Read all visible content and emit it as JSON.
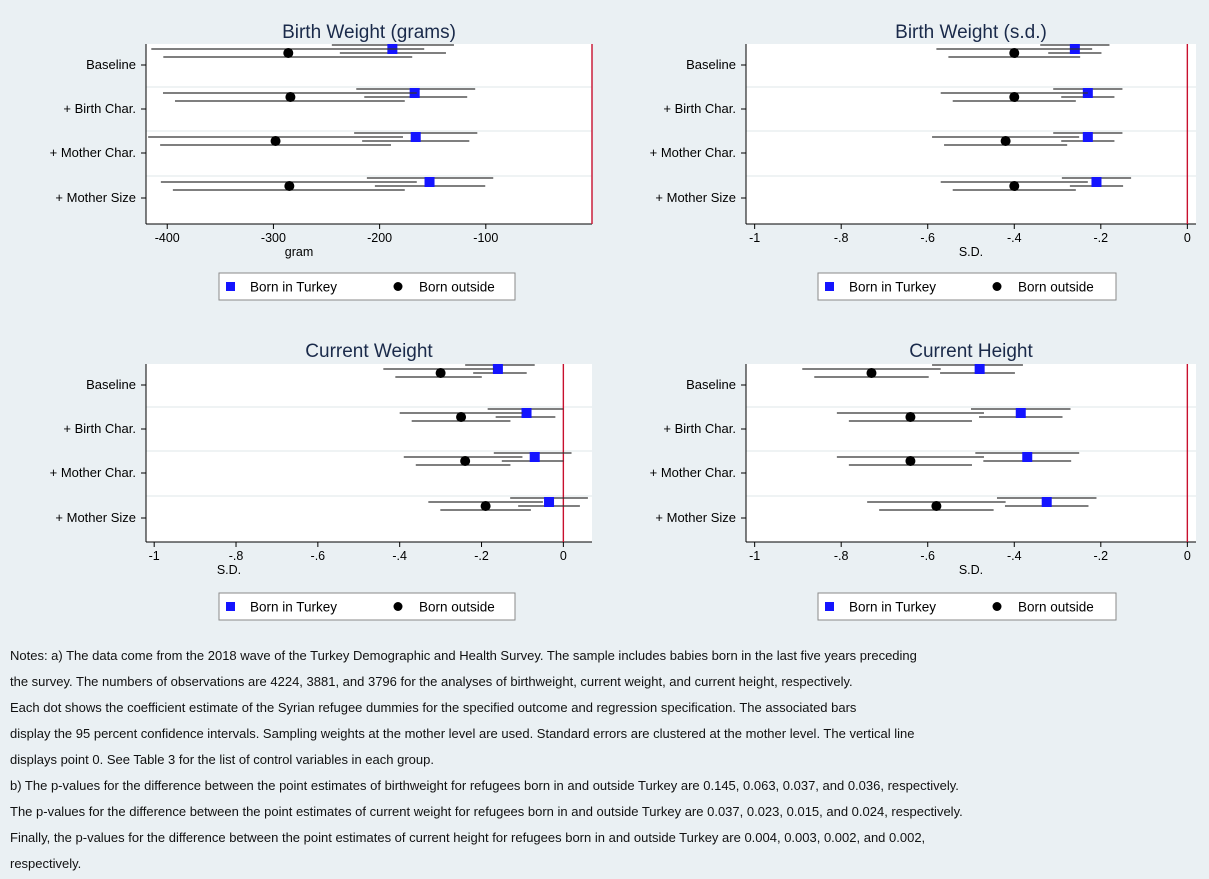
{
  "chart_data": [
    {
      "type": "scatter",
      "title": "Birth Weight (grams)",
      "xlabel": "gram",
      "xlim": [
        -420,
        0
      ],
      "xticks": [
        -400,
        -300,
        -200,
        -100
      ],
      "xtick_labels": [
        "-400",
        "-300",
        "-200",
        "-100"
      ],
      "zero_line": 0,
      "categories": [
        "Baseline",
        "+ Birth Char.",
        "+ Mother Char.",
        "+ Mother Size"
      ],
      "series": [
        {
          "name": "Born in Turkey",
          "marker": "square",
          "color": "#1414ff",
          "values": [
            -188,
            -167,
            -166,
            -153
          ],
          "ci": [
            [
              -245,
              -130
            ],
            [
              -222,
              -110
            ],
            [
              -224,
              -108
            ],
            [
              -212,
              -93
            ]
          ]
        },
        {
          "name": "Born outside",
          "marker": "circle",
          "color": "#000000",
          "values": [
            -286,
            -284,
            -298,
            -285
          ],
          "ci": [
            [
              -415,
              -158
            ],
            [
              -404,
              -165
            ],
            [
              -418,
              -178
            ],
            [
              -406,
              -165
            ]
          ]
        }
      ],
      "legend": {
        "position": "bottom",
        "labels": [
          "Born in Turkey",
          "Born outside"
        ]
      }
    },
    {
      "type": "scatter",
      "title": "Birth Weight (s.d.)",
      "xlabel": "S.D.",
      "xlim": [
        -1.02,
        0.02
      ],
      "xticks": [
        -1,
        -0.8,
        -0.6,
        -0.4,
        -0.2,
        0
      ],
      "xtick_labels": [
        "-1",
        "-.8",
        "-.6",
        "-.4",
        "-.2",
        "0"
      ],
      "zero_line": 0,
      "categories": [
        "Baseline",
        "+ Birth Char.",
        "+ Mother Char.",
        "+ Mother Size"
      ],
      "series": [
        {
          "name": "Born in Turkey",
          "marker": "square",
          "color": "#1414ff",
          "values": [
            -0.26,
            -0.23,
            -0.23,
            -0.21
          ],
          "ci": [
            [
              -0.34,
              -0.18
            ],
            [
              -0.31,
              -0.15
            ],
            [
              -0.31,
              -0.15
            ],
            [
              -0.29,
              -0.13
            ]
          ]
        },
        {
          "name": "Born outside",
          "marker": "circle",
          "color": "#000000",
          "values": [
            -0.4,
            -0.4,
            -0.42,
            -0.4
          ],
          "ci": [
            [
              -0.58,
              -0.22
            ],
            [
              -0.57,
              -0.23
            ],
            [
              -0.59,
              -0.25
            ],
            [
              -0.57,
              -0.23
            ]
          ]
        }
      ],
      "legend": {
        "position": "bottom",
        "labels": [
          "Born in Turkey",
          "Born outside"
        ]
      }
    },
    {
      "type": "scatter",
      "title": "Current Weight",
      "xlabel": "S.D.",
      "xlim": [
        -1.02,
        0.07
      ],
      "xticks": [
        -1,
        -0.8,
        -0.6,
        -0.4,
        -0.2,
        0
      ],
      "xtick_labels": [
        "-1",
        "-.8",
        "-.6",
        "-.4",
        "-.2",
        "0"
      ],
      "zero_line": 0,
      "categories": [
        "Baseline",
        "+ Birth Char.",
        "+ Mother Char.",
        "+ Mother Size"
      ],
      "series": [
        {
          "name": "Born in Turkey",
          "marker": "square",
          "color": "#1414ff",
          "values": [
            -0.16,
            -0.09,
            -0.07,
            -0.035
          ],
          "ci": [
            [
              -0.24,
              -0.07
            ],
            [
              -0.185,
              0.0
            ],
            [
              -0.17,
              0.02
            ],
            [
              -0.13,
              0.06
            ]
          ]
        },
        {
          "name": "Born outside",
          "marker": "circle",
          "color": "#000000",
          "values": [
            -0.3,
            -0.25,
            -0.24,
            -0.19
          ],
          "ci": [
            [
              -0.44,
              -0.17
            ],
            [
              -0.4,
              -0.1
            ],
            [
              -0.39,
              -0.1
            ],
            [
              -0.33,
              -0.05
            ]
          ]
        }
      ],
      "legend": {
        "position": "bottom",
        "labels": [
          "Born in Turkey",
          "Born outside"
        ]
      }
    },
    {
      "type": "scatter",
      "title": "Current Height",
      "xlabel": "S.D.",
      "xlim": [
        -1.02,
        0.02
      ],
      "xticks": [
        -1,
        -0.8,
        -0.6,
        -0.4,
        -0.2,
        0
      ],
      "xtick_labels": [
        "-1",
        "-.8",
        "-.6",
        "-.4",
        "-.2",
        "0"
      ],
      "zero_line": 0,
      "categories": [
        "Baseline",
        "+ Birth Char.",
        "+ Mother Char.",
        "+ Mother Size"
      ],
      "series": [
        {
          "name": "Born in Turkey",
          "marker": "square",
          "color": "#1414ff",
          "values": [
            -0.48,
            -0.385,
            -0.37,
            -0.325
          ],
          "ci": [
            [
              -0.59,
              -0.38
            ],
            [
              -0.5,
              -0.27
            ],
            [
              -0.49,
              -0.25
            ],
            [
              -0.44,
              -0.21
            ]
          ]
        },
        {
          "name": "Born outside",
          "marker": "circle",
          "color": "#000000",
          "values": [
            -0.73,
            -0.64,
            -0.64,
            -0.58
          ],
          "ci": [
            [
              -0.89,
              -0.57
            ],
            [
              -0.81,
              -0.47
            ],
            [
              -0.81,
              -0.47
            ],
            [
              -0.74,
              -0.42
            ]
          ]
        }
      ],
      "legend": {
        "position": "bottom",
        "labels": [
          "Born in Turkey",
          "Born outside"
        ]
      }
    }
  ],
  "notes": [
    "Notes: a) The data come from the 2018 wave of the Turkey Demographic and Health Survey. The sample includes babies born in the last five years preceding",
    "the survey. The numbers of observations are 4224, 3881, and 3796 for the analyses of birthweight, current weight, and current height, respectively.",
    "Each dot shows the coefficient estimate of the Syrian refugee dummies for the specified outcome and regression specification. The associated bars",
    "display the 95 percent confidence intervals. Sampling weights at the mother level are used. Standard errors are clustered at the mother level. The vertical line",
    "displays point 0. See Table 3 for the list of control variables in each group.",
    "b) The p-values for the difference between the point estimates of birthweight for refugees born in and outside Turkey are 0.145, 0.063, 0.037, and 0.036, respectively.",
    "The p-values for the difference between the point estimates of current weight for refugees born in and outside Turkey are 0.037, 0.023, 0.015, and 0.024, respectively.",
    "Finally, the p-values for the difference between the point estimates of current height for refugees born in and outside Turkey are 0.004, 0.003, 0.002, and 0.002,",
    "respectively."
  ],
  "colors": {
    "background": "#eaf0f3",
    "plot_bg": "#ffffff",
    "zero_line": "#c8102e",
    "turkey": "#1414ff",
    "outside": "#000000"
  }
}
